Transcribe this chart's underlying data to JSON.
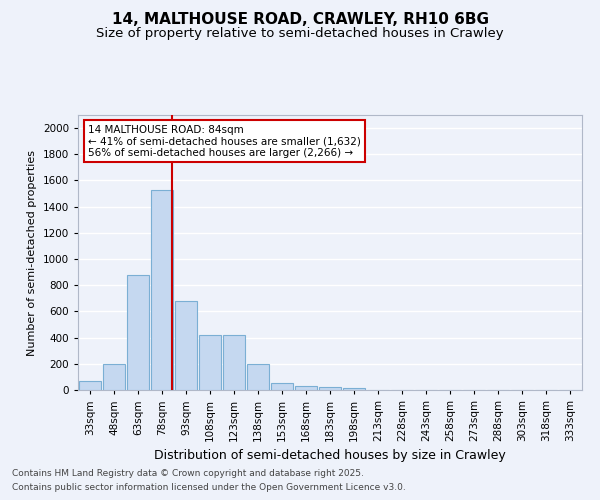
{
  "title1": "14, MALTHOUSE ROAD, CRAWLEY, RH10 6BG",
  "title2": "Size of property relative to semi-detached houses in Crawley",
  "xlabel": "Distribution of semi-detached houses by size in Crawley",
  "ylabel": "Number of semi-detached properties",
  "bin_labels": [
    "33sqm",
    "48sqm",
    "63sqm",
    "78sqm",
    "93sqm",
    "108sqm",
    "123sqm",
    "138sqm",
    "153sqm",
    "168sqm",
    "183sqm",
    "198sqm",
    "213sqm",
    "228sqm",
    "243sqm",
    "258sqm",
    "273sqm",
    "288sqm",
    "303sqm",
    "318sqm",
    "333sqm"
  ],
  "bar_values": [
    65,
    195,
    875,
    1530,
    680,
    420,
    420,
    195,
    55,
    30,
    20,
    15,
    0,
    0,
    0,
    0,
    0,
    0,
    0,
    0,
    0
  ],
  "bar_color": "#c5d8f0",
  "bar_edge_color": "#7bafd4",
  "red_line_x": 3.4,
  "red_line_color": "#cc0000",
  "annotation_text": "14 MALTHOUSE ROAD: 84sqm\n← 41% of semi-detached houses are smaller (1,632)\n56% of semi-detached houses are larger (2,266) →",
  "annotation_box_color": "#cc0000",
  "ylim": [
    0,
    2100
  ],
  "yticks": [
    0,
    200,
    400,
    600,
    800,
    1000,
    1200,
    1400,
    1600,
    1800,
    2000
  ],
  "footer1": "Contains HM Land Registry data © Crown copyright and database right 2025.",
  "footer2": "Contains public sector information licensed under the Open Government Licence v3.0.",
  "bg_color": "#eef2fa",
  "grid_color": "#ffffff",
  "title_fontsize": 11,
  "subtitle_fontsize": 9.5,
  "ylabel_fontsize": 8,
  "xlabel_fontsize": 9,
  "tick_fontsize": 7.5,
  "footer_fontsize": 6.5
}
